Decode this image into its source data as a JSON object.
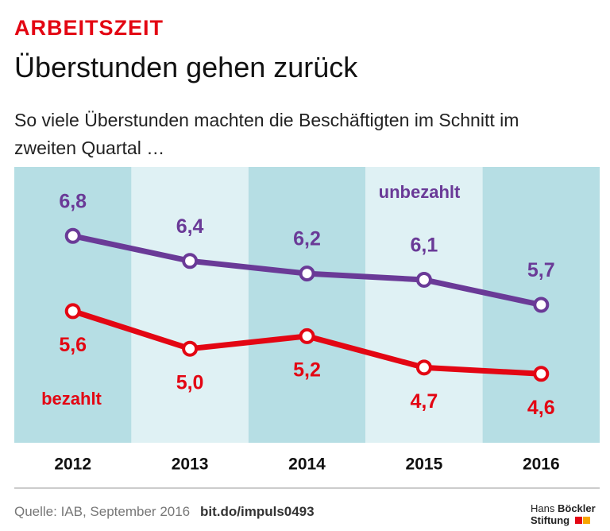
{
  "chart_data": {
    "type": "line",
    "kicker": "ARBEITSZEIT",
    "title": "Überstunden gehen zurück",
    "subtitle": "So viele Überstunden machten die Beschäftigten im Schnitt im zweiten Quartal …",
    "categories": [
      "2012",
      "2013",
      "2014",
      "2015",
      "2016"
    ],
    "series": [
      {
        "name": "unbezahlt",
        "color": "#6a3a97",
        "values": [
          6.8,
          6.4,
          6.2,
          6.1,
          5.7
        ],
        "value_labels": [
          "6,8",
          "6,4",
          "6,2",
          "6,1",
          "5,7"
        ]
      },
      {
        "name": "bezahlt",
        "color": "#e30613",
        "values": [
          5.6,
          5.0,
          5.2,
          4.7,
          4.6
        ],
        "value_labels": [
          "5,6",
          "5,0",
          "5,2",
          "4,7",
          "4,6"
        ]
      }
    ],
    "ylim": [
      3.5,
      7.9
    ],
    "source": "Quelle: IAB, September 2016",
    "link": "bit.do/impuls0493",
    "logo": [
      "Hans",
      "Böckler",
      "Stiftung"
    ]
  }
}
